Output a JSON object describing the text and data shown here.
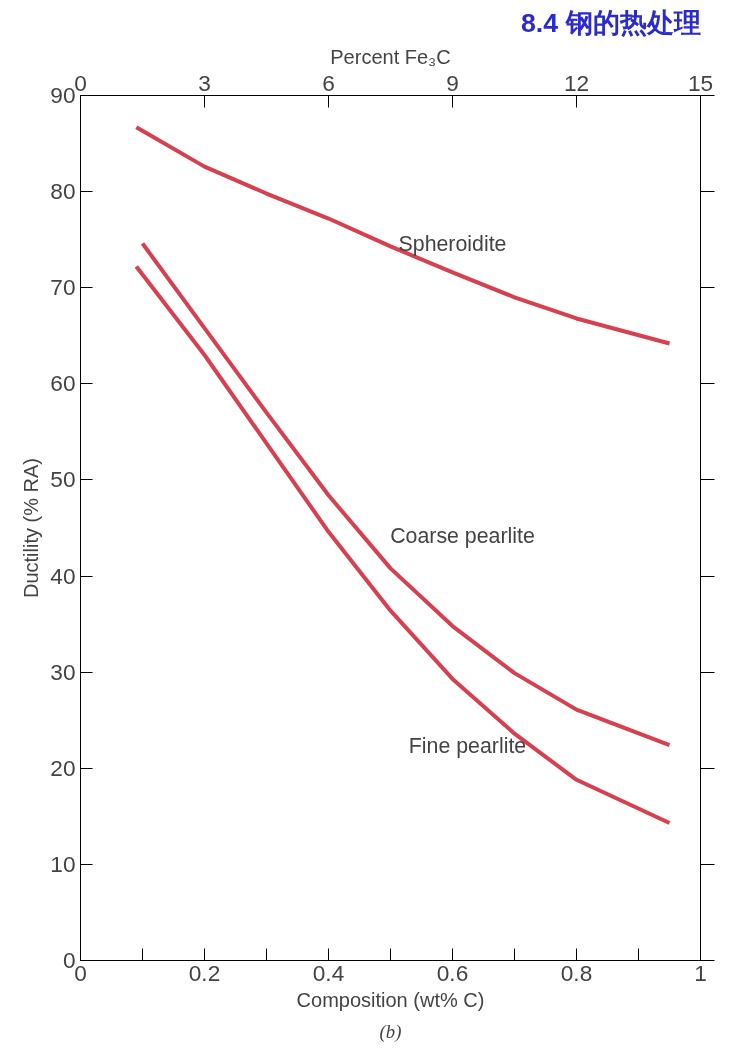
{
  "chart_data": {
    "type": "line",
    "title": "8.4 钢的热处理",
    "xlabel": "Composition (wt% C)",
    "ylabel": "Ductility (% RA)",
    "x2label": "Percent Fe₃C",
    "xlim": [
      0,
      1.0
    ],
    "xticks": [
      0,
      {
        "value": 0.1,
        "label": null
      },
      0.2,
      {
        "value": 0.3,
        "label": null
      },
      0.4,
      {
        "value": 0.5,
        "label": null
      },
      0.6,
      {
        "value": 0.7,
        "label": null
      },
      0.8,
      {
        "value": 0.9,
        "label": null
      },
      1
    ],
    "x2lim": [
      0,
      15
    ],
    "x2ticks": [
      0,
      3,
      6,
      9,
      12,
      15
    ],
    "ylim": [
      0,
      90
    ],
    "yticks": [
      0,
      10,
      20,
      30,
      40,
      50,
      60,
      70,
      80,
      90
    ],
    "grid": false,
    "marker": "none",
    "line_style": "solid",
    "annotations": [
      "(b)"
    ],
    "series": [
      {
        "name": "Spheroidite",
        "color": "#d9404f",
        "x": [
          0.09,
          0.2,
          0.3,
          0.4,
          0.5,
          0.6,
          0.7,
          0.8,
          0.95
        ],
        "values": [
          86.7,
          82.6,
          79.8,
          77.2,
          74.3,
          71.6,
          69.0,
          66.8,
          64.2
        ]
      },
      {
        "name": "Coarse pearlite",
        "color": "#d9404f",
        "x": [
          0.1,
          0.2,
          0.3,
          0.4,
          0.5,
          0.6,
          0.7,
          0.8,
          0.95
        ],
        "values": [
          74.6,
          65.8,
          57.0,
          48.4,
          40.8,
          34.8,
          29.9,
          26.1,
          22.4
        ]
      },
      {
        "name": "Fine pearlite",
        "color": "#d9404f",
        "x": [
          0.09,
          0.2,
          0.3,
          0.4,
          0.5,
          0.6,
          0.7,
          0.8,
          0.95
        ],
        "values": [
          72.2,
          63.0,
          53.8,
          44.6,
          36.4,
          29.3,
          23.6,
          18.8,
          14.3
        ]
      }
    ]
  }
}
